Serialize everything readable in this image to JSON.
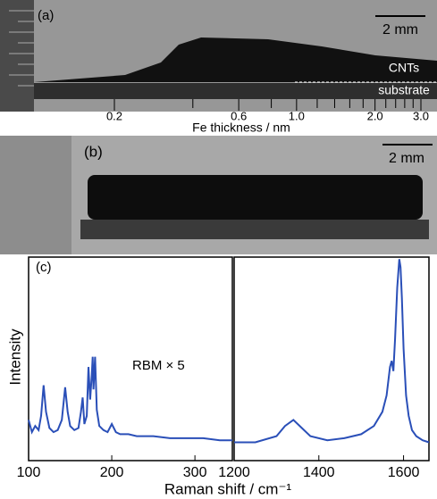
{
  "panel_a": {
    "label": "(a)",
    "scale_bar": "2 mm",
    "layer_top": "CNTs",
    "layer_bottom": "substrate",
    "fe_axis": {
      "label": "Fe thickness / nm",
      "log_scale": true,
      "xlim": [
        0.2,
        3.0
      ],
      "xticks": [
        0.2,
        0.6,
        {
          "value": 1.0,
          "label": "1.0"
        },
        {
          "value": 2.0,
          "label": "2.0"
        },
        {
          "value": 3.0,
          "label": "3.0"
        }
      ],
      "minor_ticks": [
        0.4,
        0.8,
        1.2,
        1.4,
        1.6,
        1.8,
        2.2,
        2.4,
        2.6,
        2.8
      ]
    }
  },
  "panel_b": {
    "label": "(b)",
    "scale_bar": "2 mm"
  },
  "panel_c": {
    "label": "(c)",
    "ylabel": "Intensity",
    "xlabel": "Raman shift / cm⁻¹",
    "annotation": "RBM × 5"
  },
  "chart_data": [
    {
      "type": "line",
      "color": "#2a4fb8",
      "xlim": [
        100,
        345
      ],
      "ylim": [
        0,
        100
      ],
      "xticks": [
        100,
        200,
        300
      ],
      "x": [
        100,
        104,
        108,
        112,
        115,
        118,
        121,
        125,
        130,
        135,
        140,
        144,
        147,
        150,
        155,
        160,
        163,
        165,
        167,
        170,
        172,
        174,
        176,
        177,
        178,
        180,
        182,
        185,
        190,
        195,
        200,
        205,
        210,
        220,
        230,
        250,
        270,
        290,
        310,
        330,
        345
      ],
      "values": [
        20,
        14,
        17,
        15,
        22,
        37,
        24,
        16,
        14,
        15,
        20,
        36,
        24,
        17,
        15,
        16,
        24,
        31,
        18,
        22,
        46,
        30,
        42,
        51,
        35,
        51,
        25,
        17,
        15,
        14,
        18,
        14,
        13,
        13,
        12,
        12,
        11,
        11,
        11,
        10,
        10
      ]
    },
    {
      "type": "line",
      "color": "#2a4fb8",
      "xlim": [
        1200,
        1660
      ],
      "ylim": [
        0,
        100
      ],
      "xticks": [
        1200,
        1400,
        1600
      ],
      "x": [
        1200,
        1250,
        1300,
        1320,
        1340,
        1360,
        1380,
        1420,
        1460,
        1500,
        1530,
        1550,
        1560,
        1568,
        1572,
        1576,
        1580,
        1585,
        1590,
        1593,
        1596,
        1600,
        1606,
        1612,
        1620,
        1630,
        1645,
        1660
      ],
      "values": [
        9,
        9,
        12,
        17,
        20,
        16,
        12,
        10,
        11,
        13,
        17,
        24,
        32,
        46,
        49,
        44,
        60,
        85,
        99,
        95,
        80,
        55,
        32,
        22,
        15,
        12,
        10,
        9
      ]
    }
  ]
}
